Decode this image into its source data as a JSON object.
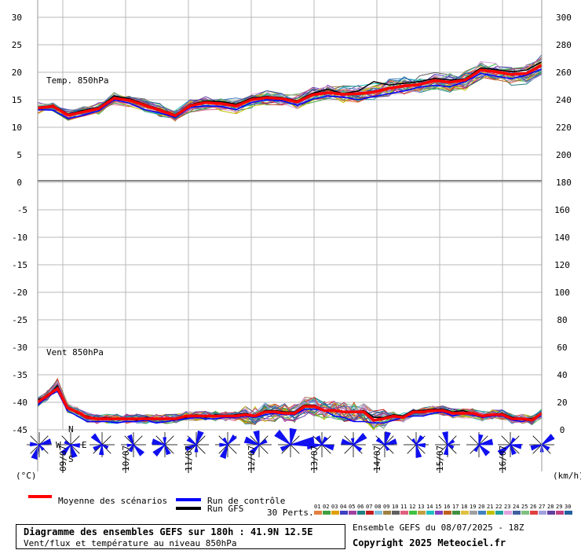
{
  "chart_data": {
    "type": "line",
    "top_panel_label": "Temp. 850hPa",
    "bottom_panel_label": "Vent 850hPa",
    "left_unit": "(°C)",
    "right_unit": "(km/h)",
    "temp_axis_left_ticks": [
      "30",
      "25",
      "20",
      "15",
      "10",
      "5",
      "0"
    ],
    "temp_axis_right_ticks": [
      "300",
      "280",
      "260",
      "240",
      "220",
      "200",
      "180"
    ],
    "wind_axis_left_ticks": [
      "-5",
      "-10",
      "-15",
      "-20",
      "-25",
      "-30",
      "-35",
      "-40",
      "-45"
    ],
    "wind_axis_right_ticks": [
      "160",
      "140",
      "120",
      "100",
      "80",
      "60",
      "40",
      "20",
      "0"
    ],
    "date_labels": [
      "09/07",
      "10/07",
      "11/07",
      "12/07",
      "13/07",
      "14/07",
      "15/07",
      "16/07"
    ],
    "temp_mean": [
      13.5,
      13.8,
      12.2,
      12.8,
      13.4,
      15.3,
      14.9,
      14.0,
      13.1,
      12.1,
      13.9,
      14.5,
      14.3,
      13.9,
      15.0,
      15.4,
      15.2,
      14.6,
      15.9,
      16.3,
      16.0,
      16.1,
      16.4,
      17.1,
      17.5,
      17.8,
      18.5,
      18.2,
      18.6,
      20.4,
      20.1,
      19.6,
      19.8,
      21.3
    ],
    "temp_control": [
      13.2,
      13.1,
      11.6,
      12.2,
      13.0,
      15.0,
      14.4,
      13.2,
      12.6,
      11.8,
      13.6,
      13.9,
      13.8,
      13.2,
      14.5,
      15.0,
      14.8,
      14.0,
      15.1,
      15.7,
      15.5,
      15.0,
      15.6,
      16.1,
      16.6,
      17.3,
      17.6,
      17.4,
      18.3,
      19.8,
      19.3,
      18.8,
      19.5,
      20.6
    ],
    "temp_gfs": [
      13.6,
      14.0,
      12.4,
      13.1,
      13.6,
      15.7,
      15.2,
      14.2,
      13.3,
      12.3,
      14.1,
      14.8,
      14.7,
      14.2,
      15.3,
      15.6,
      15.4,
      14.8,
      16.2,
      16.9,
      16.1,
      16.6,
      18.3,
      17.7,
      18.0,
      18.3,
      18.9,
      18.6,
      18.8,
      20.8,
      20.5,
      20.1,
      20.4,
      21.9
    ],
    "wind_mean": [
      20,
      25,
      30,
      16,
      13,
      9,
      8,
      8,
      8,
      8,
      8,
      8,
      8,
      8,
      8,
      10,
      10,
      10,
      10,
      10,
      10,
      11,
      10,
      13,
      13,
      12,
      12,
      17,
      17,
      14,
      14,
      13,
      13,
      13,
      7,
      8,
      10,
      9,
      13,
      13,
      14,
      14,
      12,
      12,
      12,
      10,
      11,
      11,
      8,
      8,
      7,
      12
    ],
    "wind_control": [
      18,
      24,
      28,
      14,
      10,
      6,
      6,
      6,
      5,
      6,
      6,
      7,
      5,
      6,
      7,
      8,
      9,
      8,
      8,
      9,
      9,
      10,
      9,
      11,
      12,
      11,
      11,
      15,
      15,
      14,
      10,
      9,
      6,
      6,
      5,
      5,
      7,
      9,
      10,
      10,
      12,
      13,
      10,
      12,
      11,
      9,
      10,
      10,
      7,
      6,
      8,
      10
    ],
    "wind_gfs": [
      22,
      24,
      32,
      16,
      12,
      10,
      8,
      9,
      8,
      8,
      7,
      9,
      8,
      8,
      8,
      9,
      11,
      9,
      11,
      10,
      11,
      12,
      10,
      14,
      14,
      13,
      13,
      18,
      18,
      14,
      14,
      13,
      13,
      14,
      9,
      9,
      11,
      10,
      14,
      14,
      15,
      15,
      13,
      14,
      12,
      10,
      11,
      12,
      9,
      8,
      8,
      12
    ],
    "wind_rose_count": 16
  },
  "legend": {
    "mean_label": "Moyenne des scénarios",
    "control_label": "Run de contrôle",
    "gfs_label": "Run GFS",
    "perts_label": "30 Perts.",
    "pert_numbers": [
      "01",
      "02",
      "03",
      "04",
      "05",
      "06",
      "07",
      "08",
      "09",
      "10",
      "11",
      "12",
      "13",
      "14",
      "15",
      "16",
      "17",
      "18",
      "19",
      "20",
      "21",
      "22",
      "23",
      "24",
      "25",
      "26",
      "27",
      "28",
      "29",
      "30"
    ],
    "pert_colors": [
      "#e08040",
      "#40a040",
      "#e0a000",
      "#4040c0",
      "#a040a0",
      "#208080",
      "#c02020",
      "#80c0e0",
      "#a08040",
      "#606060",
      "#e06080",
      "#40c040",
      "#c0a040",
      "#20c0c0",
      "#8040c0",
      "#c06020",
      "#409040",
      "#e0c040",
      "#a0a0a0",
      "#4080c0",
      "#c0c000",
      "#20a0a0",
      "#e0a0e0",
      "#4060a0",
      "#80c080",
      "#e04040",
      "#a0a0e0",
      "#6040a0",
      "#c04080",
      "#2060a0"
    ]
  },
  "colors": {
    "mean": "#ff0000",
    "control": "#0000ff",
    "gfs": "#000000",
    "grid": "#b8b8b8",
    "rose": "#1010f0"
  },
  "footer": {
    "title": "Diagramme des ensembles GEFS sur 180h : 41.9N 12.5E",
    "subtitle": "Vent/flux et température au niveau 850hPa",
    "ensemble_info": "Ensemble GEFS du 08/07/2025 - 18Z",
    "copyright": "Copyright 2025 Meteociel.fr"
  }
}
